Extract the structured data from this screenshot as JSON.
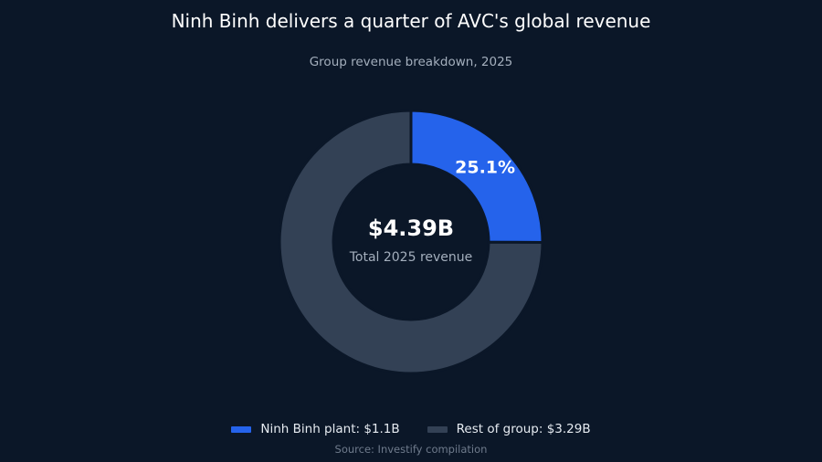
{
  "chart_data": {
    "type": "pie",
    "title": "Ninh Binh delivers a quarter of AVC's global revenue",
    "subtitle": "Group revenue breakdown, 2025",
    "center_value": "$4.39B",
    "center_label": "Total 2025 revenue",
    "slice_label": "25.1%",
    "units": "USD billions",
    "slices": [
      {
        "label": "Ninh Binh plant: $1.1B",
        "value": 1.1,
        "color": "#2563eb"
      },
      {
        "label": "Rest of group: $3.29B",
        "value": 3.29,
        "color": "#334155"
      }
    ],
    "legend_position": "bottom",
    "source": "Source: Investify compilation"
  },
  "colors": {
    "background": "#0b1728",
    "accent": "#2563eb",
    "muted": "#334155"
  }
}
